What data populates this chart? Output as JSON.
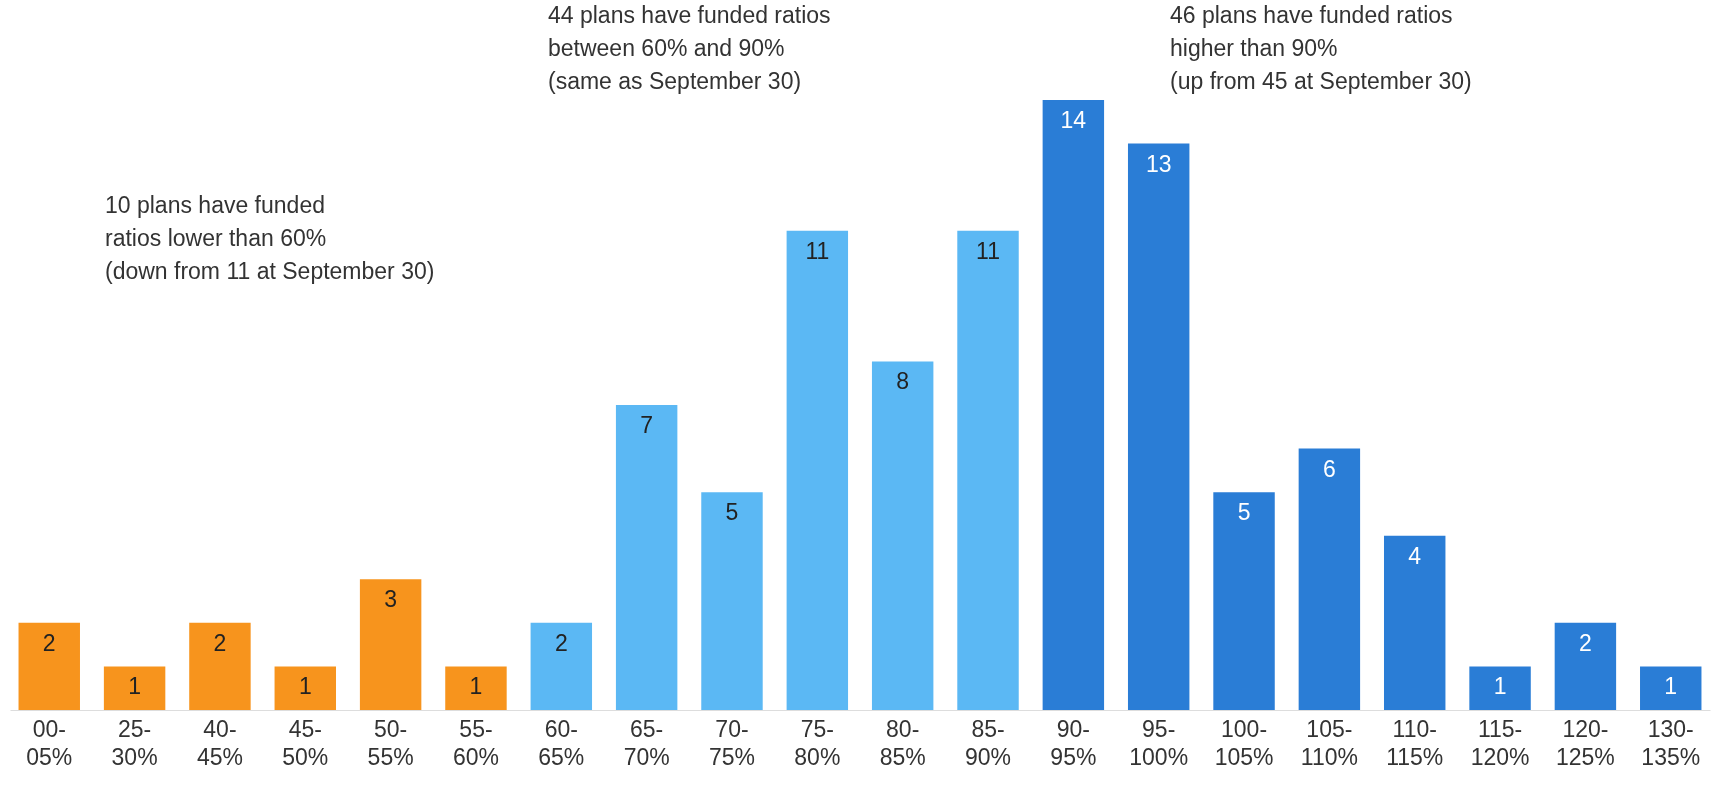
{
  "chart_data": {
    "type": "bar",
    "categories": [
      "00-05%",
      "25-30%",
      "40-45%",
      "45-50%",
      "50-55%",
      "55-60%",
      "60-65%",
      "65-70%",
      "70-75%",
      "75-80%",
      "80-85%",
      "85-90%",
      "90-95%",
      "95-100%",
      "100-105%",
      "105-110%",
      "110-115%",
      "115-120%",
      "120-125%",
      "130-135%"
    ],
    "values": [
      2,
      1,
      2,
      1,
      3,
      1,
      2,
      7,
      5,
      11,
      8,
      11,
      14,
      13,
      5,
      6,
      4,
      1,
      2,
      1
    ],
    "colors": [
      "#f7941d",
      "#f7941d",
      "#f7941d",
      "#f7941d",
      "#f7941d",
      "#f7941d",
      "#5bb8f4",
      "#5bb8f4",
      "#5bb8f4",
      "#5bb8f4",
      "#5bb8f4",
      "#5bb8f4",
      "#2a7dd6",
      "#2a7dd6",
      "#2a7dd6",
      "#2a7dd6",
      "#2a7dd6",
      "#2a7dd6",
      "#2a7dd6",
      "#2a7dd6"
    ],
    "data_labels": true,
    "annotations": [
      "10 plans have funded ratios lower than 60% (down from 11 at September 30)",
      "44 plans have funded ratios between 60% and 90% (same as September 30)",
      "46 plans have funded ratios higher than 90% (up from 45 at September 30)"
    ]
  }
}
